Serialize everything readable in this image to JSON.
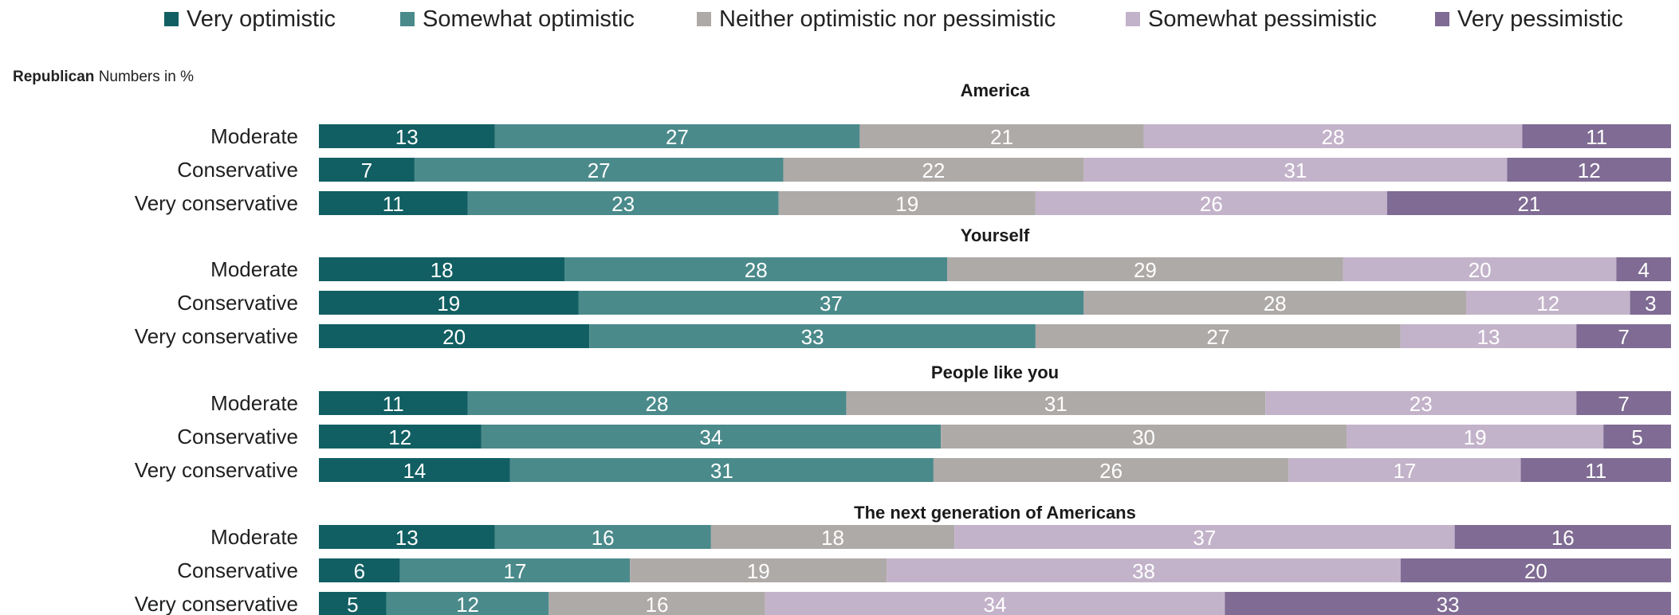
{
  "chart_data": {
    "type": "bar",
    "orientation": "horizontal",
    "stacked": true,
    "subtitle_bold": "Republican",
    "subtitle_rest": "Numbers in %",
    "legend_position": "top",
    "grid": false,
    "xlim": [
      0,
      100
    ],
    "series": [
      {
        "name": "Very optimistic",
        "color": "#115f63"
      },
      {
        "name": "Somewhat optimistic",
        "color": "#4b8a8b"
      },
      {
        "name": "Neither optimistic nor pessimistic",
        "color": "#aeaaa8"
      },
      {
        "name": "Somewhat pessimistic",
        "color": "#c3b3ca"
      },
      {
        "name": "Very pessimistic",
        "color": "#7f6b93"
      }
    ],
    "panels": [
      {
        "title": "America",
        "rows": [
          {
            "label": "Moderate",
            "values": [
              13,
              27,
              21,
              28,
              11
            ]
          },
          {
            "label": "Conservative",
            "values": [
              7,
              27,
              22,
              31,
              12
            ]
          },
          {
            "label": "Very conservative",
            "values": [
              11,
              23,
              19,
              26,
              21
            ]
          }
        ]
      },
      {
        "title": "Yourself",
        "rows": [
          {
            "label": "Moderate",
            "values": [
              18,
              28,
              29,
              20,
              4
            ]
          },
          {
            "label": "Conservative",
            "values": [
              19,
              37,
              28,
              12,
              3
            ]
          },
          {
            "label": "Very conservative",
            "values": [
              20,
              33,
              27,
              13,
              7
            ]
          }
        ]
      },
      {
        "title": "People like you",
        "rows": [
          {
            "label": "Moderate",
            "values": [
              11,
              28,
              31,
              23,
              7
            ]
          },
          {
            "label": "Conservative",
            "values": [
              12,
              34,
              30,
              19,
              5
            ]
          },
          {
            "label": "Very conservative",
            "values": [
              14,
              31,
              26,
              17,
              11
            ]
          }
        ]
      },
      {
        "title": "The next generation of Americans",
        "rows": [
          {
            "label": "Moderate",
            "values": [
              13,
              16,
              18,
              37,
              16
            ]
          },
          {
            "label": "Conservative",
            "values": [
              6,
              17,
              19,
              38,
              20
            ]
          },
          {
            "label": "Very conservative",
            "values": [
              5,
              12,
              16,
              34,
              33
            ]
          }
        ]
      }
    ]
  }
}
